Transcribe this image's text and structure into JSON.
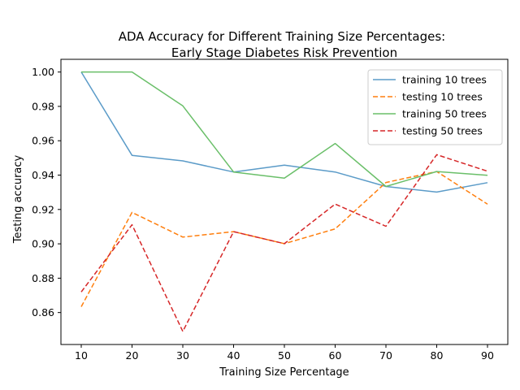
{
  "chart_data": {
    "type": "line",
    "title": "ADA Accuracy for Different Training Size Percentages:",
    "subtitle": "Early Stage Diabetes Risk Prevention",
    "xlabel": "Training Size Percentage",
    "ylabel": "Testing accuracy",
    "x": [
      10,
      20,
      30,
      40,
      50,
      60,
      70,
      80,
      90
    ],
    "xticks": [
      "10",
      "20",
      "30",
      "40",
      "50",
      "60",
      "70",
      "80",
      "90"
    ],
    "yticks": [
      "0.86",
      "0.88",
      "0.90",
      "0.92",
      "0.94",
      "0.96",
      "0.98",
      "1.00"
    ],
    "ytick_values": [
      0.86,
      0.88,
      0.9,
      0.92,
      0.94,
      0.96,
      0.98,
      1.0
    ],
    "xlim": [
      6,
      94
    ],
    "ylim": [
      0.8414,
      1.0074
    ],
    "grid": false,
    "legend_position": "top-right",
    "series": [
      {
        "name": "training 10 trees",
        "color": "#5b9bc8",
        "dash": "solid",
        "values": [
          1.0,
          0.9515,
          0.9483,
          0.9418,
          0.9458,
          0.9418,
          0.9334,
          0.9301,
          0.9356
        ]
      },
      {
        "name": "testing 10 trees",
        "color": "#ff7f0e",
        "dash": "dashed",
        "values": [
          0.8634,
          0.9183,
          0.9039,
          0.9071,
          0.9001,
          0.9087,
          0.9357,
          0.9421,
          0.9231
        ]
      },
      {
        "name": "training 50 trees",
        "color": "#6abf69",
        "dash": "solid",
        "values": [
          1.0,
          1.0,
          0.9803,
          0.9418,
          0.9382,
          0.9584,
          0.9334,
          0.9421,
          0.9399
        ]
      },
      {
        "name": "testing 50 trees",
        "color": "#d62728",
        "dash": "dashed",
        "values": [
          0.872,
          0.9111,
          0.849,
          0.9071,
          0.9001,
          0.9231,
          0.9102,
          0.9519,
          0.9423
        ]
      }
    ]
  }
}
